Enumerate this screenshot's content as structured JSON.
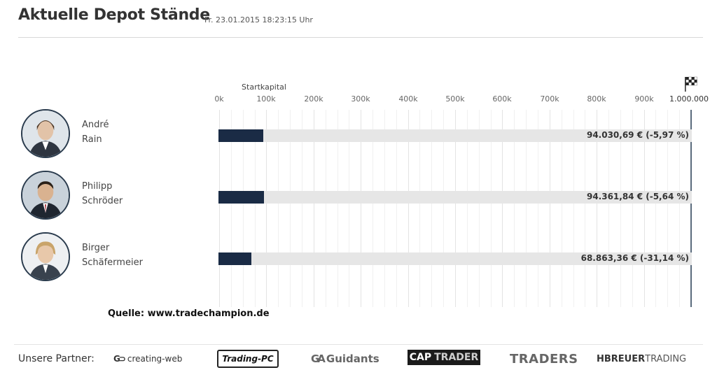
{
  "header": {
    "title": "Aktuelle Depot Stände",
    "timestamp": "Fr. 23.01.2015 18:23:15 Uhr"
  },
  "chart_data": {
    "type": "bar",
    "orientation": "horizontal",
    "categories": [
      "André Rain",
      "Philipp Schröder",
      "Birger Schäfermeier"
    ],
    "values": [
      94030.69,
      94361.84,
      68863.36
    ],
    "value_labels": [
      "94.030,69 € (-5,97 %)",
      "94.361,84 € (-5,64 %)",
      "68.863,36 € (-31,14 %)"
    ],
    "xlim": [
      0,
      1000000
    ],
    "ticks": [
      {
        "value": 0,
        "label": "0k"
      },
      {
        "value": 100000,
        "label": "100k"
      },
      {
        "value": 200000,
        "label": "200k"
      },
      {
        "value": 300000,
        "label": "300k"
      },
      {
        "value": 400000,
        "label": "400k"
      },
      {
        "value": 500000,
        "label": "500k"
      },
      {
        "value": 600000,
        "label": "600k"
      },
      {
        "value": 700000,
        "label": "700k"
      },
      {
        "value": 800000,
        "label": "800k"
      },
      {
        "value": 900000,
        "label": "900k"
      },
      {
        "value": 1000000,
        "label": "1.000.000"
      }
    ],
    "startkapital": {
      "value": 100000,
      "label": "Startkapital"
    },
    "bar_color": "#1a2b45",
    "track_color": "#e6e6e6",
    "grid": true
  },
  "participants": [
    {
      "first": "André",
      "last": "Rain"
    },
    {
      "first": "Philipp",
      "last": "Schröder"
    },
    {
      "first": "Birger",
      "last": "Schäfermeier"
    }
  ],
  "source": "Quelle: www.tradechampion.de",
  "footer": {
    "partners_label": "Unsere Partner:",
    "logos": {
      "creating_web": "creating-web",
      "trading_pc": "Trading-PC",
      "guidants": "Guidants",
      "captrader_a": "CAP",
      "captrader_b": "TRADER",
      "traders": "TRADERS",
      "hbreuer_a": "HBREUER",
      "hbreuer_b": "TRADING"
    }
  }
}
